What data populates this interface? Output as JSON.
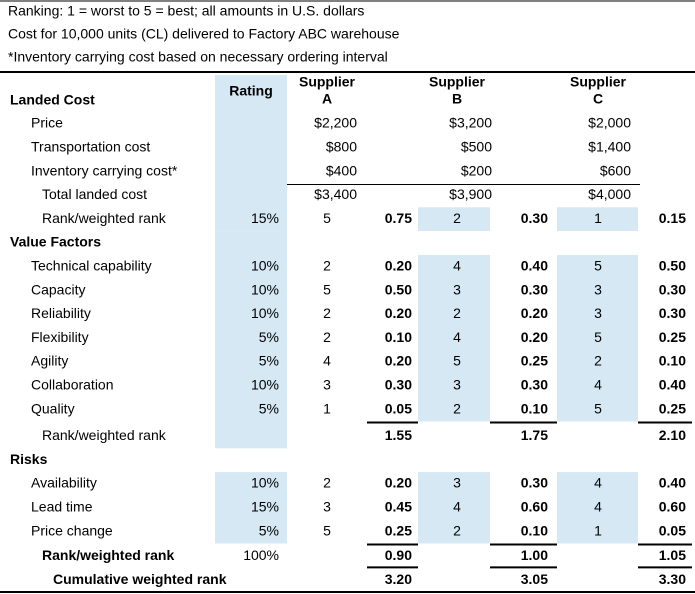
{
  "notes": [
    "Ranking: 1 = worst to 5 = best; all amounts in U.S. dollars",
    "Cost for 10,000 units (CL) delivered to Factory ABC warehouse",
    "*Inventory carrying cost based on necessary ordering interval"
  ],
  "table": {
    "header": {
      "rating": "Rating",
      "suppliers": [
        [
          "Supplier",
          "A"
        ],
        [
          "Supplier",
          "B"
        ],
        [
          "Supplier",
          "C"
        ]
      ]
    },
    "landed_cost": {
      "title": "Landed Cost",
      "costs": [
        {
          "label": "Price",
          "amounts": [
            "$2,200",
            "$3,200",
            "$2,000"
          ]
        },
        {
          "label": "Transportation cost",
          "amounts": [
            "$800",
            "$500",
            "$1,400"
          ]
        },
        {
          "label": "Inventory carrying cost*",
          "amounts": [
            "$400",
            "$200",
            "$600"
          ]
        }
      ],
      "total": {
        "label": "Total landed cost",
        "amounts": [
          "$3,400",
          "$3,900",
          "$4,000"
        ]
      },
      "rank": {
        "label": "Rank/weighted rank",
        "rating": "15%",
        "ranks": [
          "5",
          "2",
          "1"
        ],
        "weighted": [
          "0.75",
          "0.30",
          "0.15"
        ]
      }
    },
    "value_factors": {
      "title": "Value Factors",
      "factors": [
        {
          "label": "Technical capability",
          "rating": "10%",
          "ranks": [
            "2",
            "4",
            "5"
          ],
          "weighted": [
            "0.20",
            "0.40",
            "0.50"
          ]
        },
        {
          "label": "Capacity",
          "rating": "10%",
          "ranks": [
            "5",
            "3",
            "3"
          ],
          "weighted": [
            "0.50",
            "0.30",
            "0.30"
          ]
        },
        {
          "label": "Reliability",
          "rating": "10%",
          "ranks": [
            "2",
            "2",
            "3"
          ],
          "weighted": [
            "0.20",
            "0.20",
            "0.30"
          ]
        },
        {
          "label": "Flexibility",
          "rating": "5%",
          "ranks": [
            "2",
            "4",
            "5"
          ],
          "weighted": [
            "0.10",
            "0.20",
            "0.25"
          ]
        },
        {
          "label": "Agility",
          "rating": "5%",
          "ranks": [
            "4",
            "5",
            "2"
          ],
          "weighted": [
            "0.20",
            "0.25",
            "0.10"
          ]
        },
        {
          "label": "Collaboration",
          "rating": "10%",
          "ranks": [
            "3",
            "3",
            "4"
          ],
          "weighted": [
            "0.30",
            "0.30",
            "0.40"
          ]
        },
        {
          "label": "Quality",
          "rating": "5%",
          "ranks": [
            "1",
            "2",
            "5"
          ],
          "weighted": [
            "0.05",
            "0.10",
            "0.25"
          ]
        }
      ],
      "rank": {
        "label": "Rank/weighted rank",
        "weighted": [
          "1.55",
          "1.75",
          "2.10"
        ]
      }
    },
    "risks": {
      "title": "Risks",
      "factors": [
        {
          "label": "Availability",
          "rating": "10%",
          "ranks": [
            "2",
            "3",
            "4"
          ],
          "weighted": [
            "0.20",
            "0.30",
            "0.40"
          ]
        },
        {
          "label": "Lead time",
          "rating": "15%",
          "ranks": [
            "3",
            "4",
            "4"
          ],
          "weighted": [
            "0.45",
            "0.60",
            "0.60"
          ]
        },
        {
          "label": "Price change",
          "rating": "5%",
          "ranks": [
            "5",
            "2",
            "1"
          ],
          "weighted": [
            "0.25",
            "0.10",
            "0.05"
          ]
        }
      ],
      "rank": {
        "label": "Rank/weighted rank",
        "rating": "100%",
        "weighted": [
          "0.90",
          "1.00",
          "1.05"
        ]
      }
    },
    "cumulative": {
      "label": "Cumulative weighted rank",
      "weighted": [
        "3.20",
        "3.05",
        "3.30"
      ]
    }
  }
}
